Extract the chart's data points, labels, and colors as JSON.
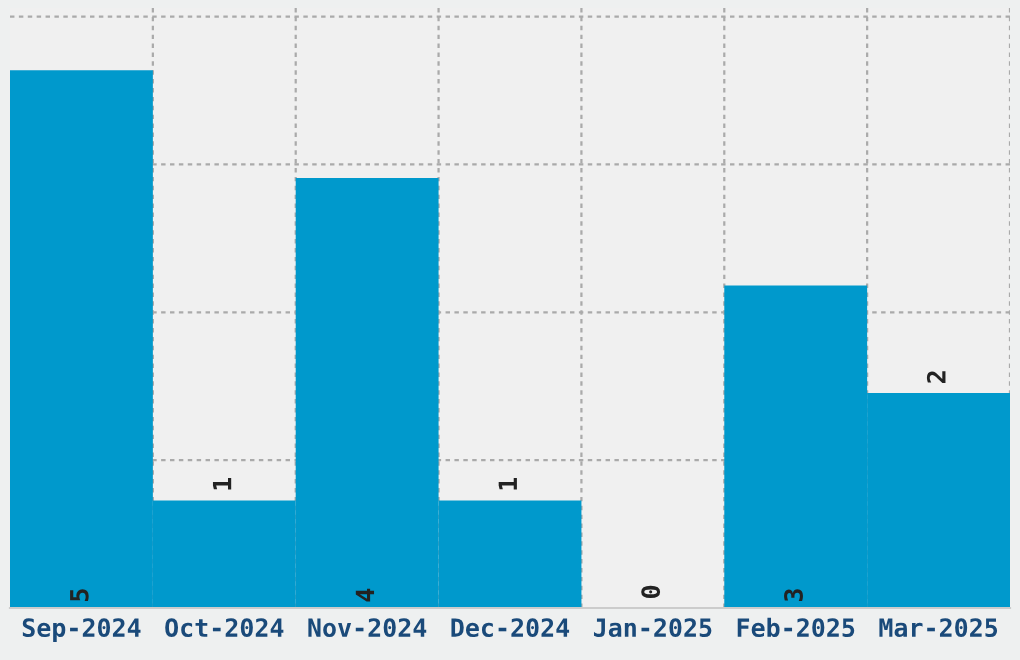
{
  "chart_data": {
    "type": "bar",
    "categories": [
      "Sep-2024",
      "Oct-2024",
      "Nov-2024",
      "Dec-2024",
      "Jan-2025",
      "Feb-2025",
      "Mar-2025"
    ],
    "values": [
      5,
      1,
      4,
      1,
      0,
      3,
      2
    ],
    "color": "#0099cc",
    "ylim": [
      0,
      5.58
    ],
    "yticks": [
      {
        "value": 1.375,
        "label": null
      },
      {
        "value": 2.75,
        "label": null
      },
      {
        "value": 4.125,
        "label": null
      },
      {
        "value": 5.5,
        "label": null
      }
    ],
    "tick_labels": "x",
    "grid": true,
    "data_labels": true
  }
}
